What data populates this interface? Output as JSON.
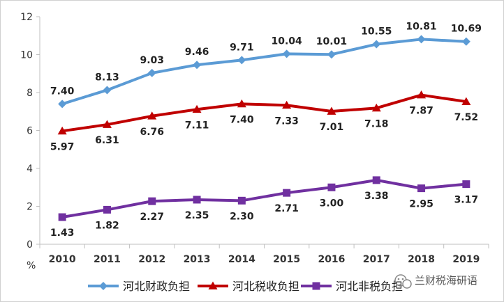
{
  "chart_data": {
    "type": "line",
    "title": "",
    "xlabel": "",
    "ylabel": "%",
    "categories": [
      "2010",
      "2011",
      "2012",
      "2013",
      "2014",
      "2015",
      "2016",
      "2017",
      "2018",
      "2019"
    ],
    "ylim": [
      0,
      12
    ],
    "yticks": [
      "0",
      "2",
      "4",
      "6",
      "8",
      "10",
      "12"
    ],
    "grid": false,
    "legend_position": "bottom",
    "series": [
      {
        "name": "河北财政负担",
        "color": "#5b9bd5",
        "marker": "diamond",
        "label_position": "above",
        "values": [
          7.4,
          8.13,
          9.03,
          9.46,
          9.71,
          10.04,
          10.01,
          10.55,
          10.81,
          10.69
        ],
        "labels": [
          "7.40",
          "8.13",
          "9.03",
          "9.46",
          "9.71",
          "10.04",
          "10.01",
          "10.55",
          "10.81",
          "10.69"
        ]
      },
      {
        "name": "河北税收负担",
        "color": "#c00000",
        "marker": "triangle",
        "label_position": "below",
        "values": [
          5.97,
          6.31,
          6.76,
          7.11,
          7.4,
          7.33,
          7.01,
          7.18,
          7.87,
          7.52
        ],
        "labels": [
          "5.97",
          "6.31",
          "6.76",
          "7.11",
          "7.40",
          "7.33",
          "7.01",
          "7.18",
          "7.87",
          "7.52"
        ]
      },
      {
        "name": "河北非税负担",
        "color": "#7030a0",
        "marker": "square",
        "label_position": "below",
        "values": [
          1.43,
          1.82,
          2.27,
          2.35,
          2.3,
          2.71,
          3.0,
          3.38,
          2.95,
          3.17
        ],
        "labels": [
          "1.43",
          "1.82",
          "2.27",
          "2.35",
          "2.30",
          "2.71",
          "3.00",
          "3.38",
          "2.95",
          "3.17"
        ]
      }
    ]
  },
  "watermark": {
    "text": "兰财税海研语"
  }
}
